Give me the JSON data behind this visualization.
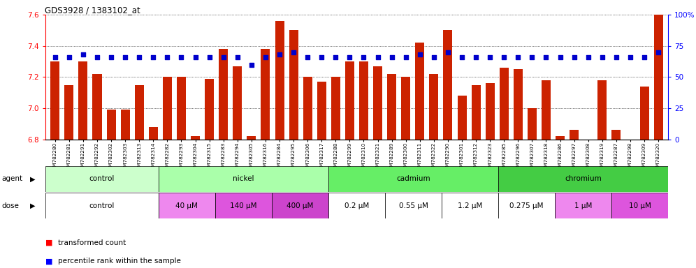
{
  "title": "GDS3928 / 1383102_at",
  "samples": [
    "GSM782280",
    "GSM782281",
    "GSM782291",
    "GSM782292",
    "GSM782302",
    "GSM782303",
    "GSM782313",
    "GSM782314",
    "GSM782282",
    "GSM782293",
    "GSM782304",
    "GSM782315",
    "GSM782283",
    "GSM782294",
    "GSM782305",
    "GSM782316",
    "GSM782284",
    "GSM782295",
    "GSM782306",
    "GSM782317",
    "GSM782288",
    "GSM782299",
    "GSM782310",
    "GSM782321",
    "GSM782289",
    "GSM782300",
    "GSM782311",
    "GSM782322",
    "GSM782290",
    "GSM782301",
    "GSM782312",
    "GSM782323",
    "GSM782285",
    "GSM782296",
    "GSM782307",
    "GSM782318",
    "GSM782286",
    "GSM782297",
    "GSM782308",
    "GSM782319",
    "GSM782287",
    "GSM782298",
    "GSM782309",
    "GSM782320"
  ],
  "bar_values": [
    7.3,
    7.15,
    7.3,
    7.22,
    6.99,
    6.99,
    7.15,
    6.88,
    7.2,
    7.2,
    6.82,
    7.19,
    7.38,
    7.27,
    6.82,
    7.38,
    7.56,
    7.5,
    7.2,
    7.17,
    7.2,
    7.3,
    7.3,
    7.27,
    7.22,
    7.2,
    7.42,
    7.22,
    7.5,
    7.08,
    7.15,
    7.16,
    7.26,
    7.25,
    7.0,
    7.18,
    6.82,
    6.86,
    6.8,
    7.18,
    6.86,
    6.8,
    7.14,
    7.6
  ],
  "percentile_values": [
    66,
    66,
    68,
    66,
    66,
    66,
    66,
    66,
    66,
    66,
    66,
    66,
    66,
    66,
    60,
    66,
    68,
    70,
    66,
    66,
    66,
    66,
    66,
    66,
    66,
    66,
    68,
    66,
    70,
    66,
    66,
    66,
    66,
    66,
    66,
    66,
    66,
    66,
    66,
    66,
    66,
    66,
    66,
    70
  ],
  "ylim_left": [
    6.8,
    7.6
  ],
  "ylim_right": [
    0,
    100
  ],
  "yticks_left": [
    6.8,
    7.0,
    7.2,
    7.4,
    7.6
  ],
  "yticks_right": [
    0,
    25,
    50,
    75,
    100
  ],
  "bar_color": "#cc2200",
  "dot_color": "#0000cc",
  "agent_groups": [
    {
      "label": "control",
      "start": 0,
      "end": 7,
      "color": "#ccffcc"
    },
    {
      "label": "nickel",
      "start": 8,
      "end": 19,
      "color": "#aaffaa"
    },
    {
      "label": "cadmium",
      "start": 20,
      "end": 31,
      "color": "#66ee66"
    },
    {
      "label": "chromium",
      "start": 32,
      "end": 43,
      "color": "#44cc44"
    }
  ],
  "dose_groups": [
    {
      "label": "control",
      "start": 0,
      "end": 7,
      "color": "#ffffff"
    },
    {
      "label": "40 μM",
      "start": 8,
      "end": 11,
      "color": "#ee88ee"
    },
    {
      "label": "140 μM",
      "start": 12,
      "end": 15,
      "color": "#dd55dd"
    },
    {
      "label": "400 μM",
      "start": 16,
      "end": 19,
      "color": "#cc44cc"
    },
    {
      "label": "0.2 μM",
      "start": 20,
      "end": 23,
      "color": "#ffffff"
    },
    {
      "label": "0.55 μM",
      "start": 24,
      "end": 27,
      "color": "#ffffff"
    },
    {
      "label": "1.2 μM",
      "start": 28,
      "end": 31,
      "color": "#ffffff"
    },
    {
      "label": "0.275 μM",
      "start": 32,
      "end": 35,
      "color": "#ffffff"
    },
    {
      "label": "1 μM",
      "start": 36,
      "end": 39,
      "color": "#ee88ee"
    },
    {
      "label": "10 μM",
      "start": 40,
      "end": 43,
      "color": "#dd55dd"
    }
  ]
}
